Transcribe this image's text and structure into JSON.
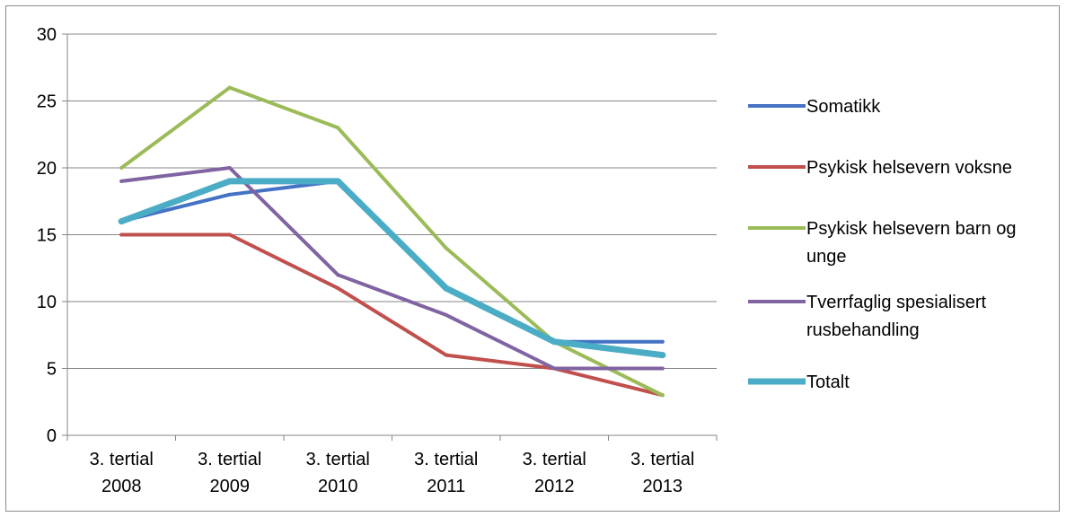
{
  "chart_data": {
    "type": "line",
    "categories": [
      [
        "3. tertial",
        "2008"
      ],
      [
        "3. tertial",
        "2009"
      ],
      [
        "3. tertial",
        "2010"
      ],
      [
        "3. tertial",
        "2011"
      ],
      [
        "3. tertial",
        "2012"
      ],
      [
        "3. tertial",
        "2013"
      ]
    ],
    "ylim": [
      0,
      30
    ],
    "yticks": [
      0,
      5,
      10,
      15,
      20,
      25,
      30
    ],
    "grid": true,
    "legend_position": "right",
    "series": [
      {
        "name": "Somatikk",
        "legend_lines": [
          "Somatikk"
        ],
        "color": "#4472c4",
        "line_weight": "normal",
        "values": [
          16,
          18,
          19,
          11,
          7,
          7
        ]
      },
      {
        "name": "Psykisk helsevern voksne",
        "legend_lines": [
          "Psykisk helsevern voksne"
        ],
        "color": "#c0504d",
        "line_weight": "normal",
        "values": [
          15,
          15,
          11,
          6,
          5,
          3
        ]
      },
      {
        "name": "Psykisk helsevern barn og unge",
        "legend_lines": [
          "Psykisk helsevern barn og",
          "unge"
        ],
        "color": "#9bbb59",
        "line_weight": "normal",
        "values": [
          20,
          26,
          23,
          14,
          7,
          3
        ]
      },
      {
        "name": "Tverrfaglig spesialisert rusbehandling",
        "legend_lines": [
          "Tverrfaglig spesialisert",
          "rusbehandling"
        ],
        "color": "#8064a2",
        "line_weight": "normal",
        "values": [
          19,
          20,
          12,
          9,
          5,
          5
        ]
      },
      {
        "name": "Totalt",
        "legend_lines": [
          "Totalt"
        ],
        "color": "#4bacc6",
        "line_weight": "thick",
        "values": [
          16,
          19,
          19,
          11,
          7,
          6
        ]
      }
    ]
  }
}
